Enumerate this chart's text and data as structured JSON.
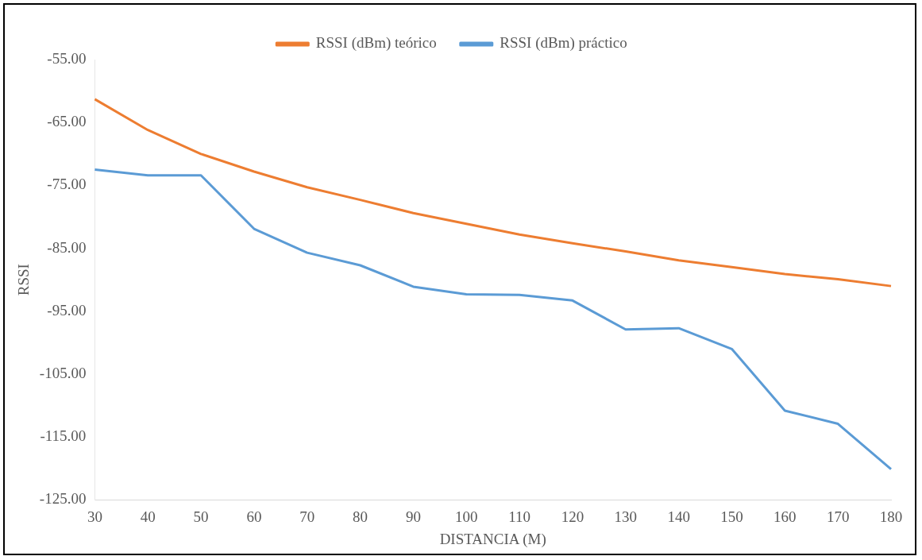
{
  "chart_data": {
    "type": "line",
    "xlabel": "DISTANCIA (M)",
    "ylabel": "RSSI",
    "legend": "top",
    "grid": false,
    "marker": "none",
    "line_style": "solid",
    "categories": [
      "30",
      "40",
      "50",
      "60",
      "70",
      "80",
      "90",
      "100",
      "110",
      "120",
      "130",
      "140",
      "150",
      "160",
      "170",
      "180"
    ],
    "ylim": [
      -125,
      -55
    ],
    "yticks": [
      {
        "value": -125,
        "label": "-125.00"
      },
      {
        "value": -115,
        "label": "-115.00"
      },
      {
        "value": -105,
        "label": "-105.00"
      },
      {
        "value": -95,
        "label": "-95.00"
      },
      {
        "value": -85,
        "label": "-85.00"
      },
      {
        "value": -75,
        "label": "-75.00"
      },
      {
        "value": -65,
        "label": "-65.00"
      },
      {
        "value": -55,
        "label": "-55.00"
      }
    ],
    "series": [
      {
        "name": "RSSI (dBm) teórico",
        "color": "#ed7d31",
        "values": [
          -61.3,
          -66.2,
          -70.0,
          -72.8,
          -75.3,
          -77.3,
          -79.4,
          -81.1,
          -82.8,
          -84.2,
          -85.5,
          -86.9,
          -88.0,
          -89.1,
          -89.9,
          -91.0
        ]
      },
      {
        "name": "RSSI (dBm) práctico",
        "color": "#5b9bd5",
        "values": [
          -72.5,
          -73.4,
          -73.4,
          -81.9,
          -85.7,
          -87.7,
          -91.1,
          -92.3,
          -92.4,
          -93.3,
          -97.9,
          -97.7,
          -101.0,
          -110.8,
          -112.9,
          -120.1
        ]
      }
    ]
  }
}
